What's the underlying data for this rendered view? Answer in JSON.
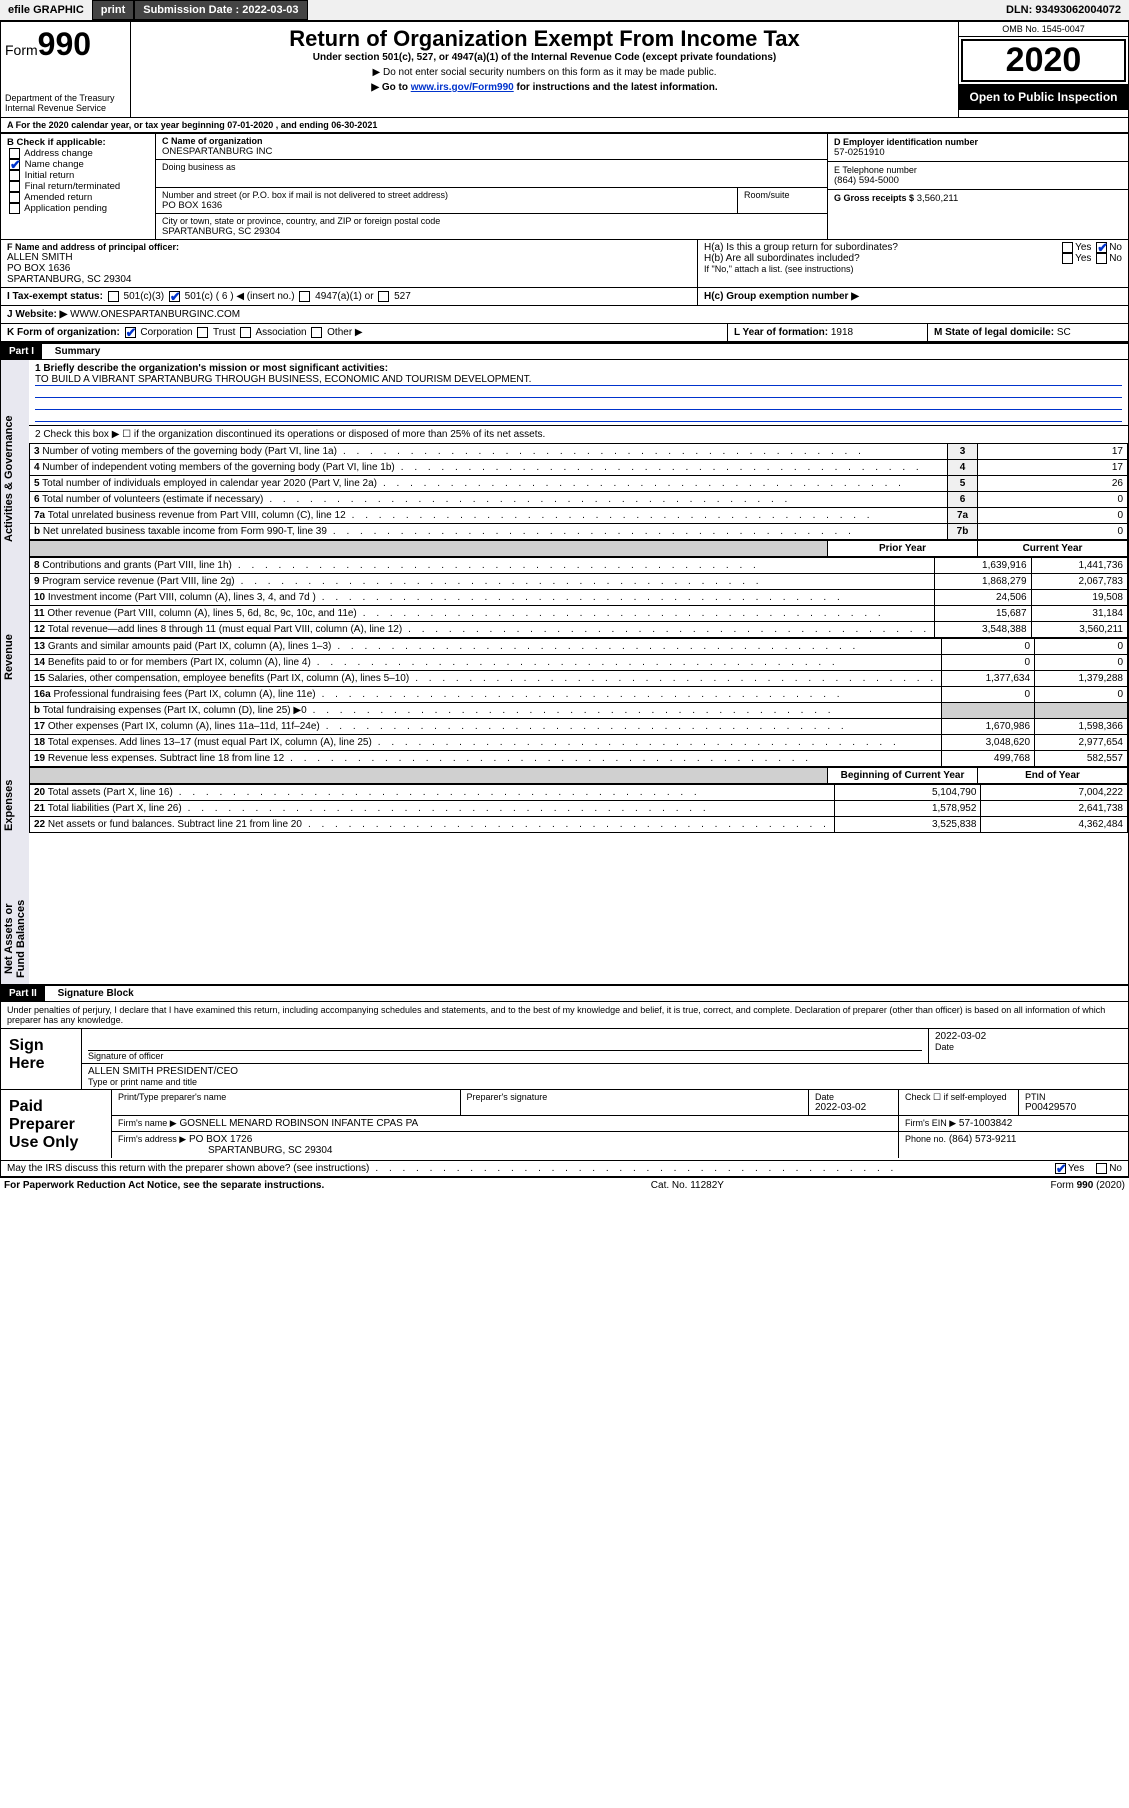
{
  "topbar": {
    "efile": "efile GRAPHIC",
    "print": "print",
    "submission_label": "Submission Date : 2022-03-03",
    "dln": "DLN: 93493062004072"
  },
  "header": {
    "form_label": "Form",
    "form_number": "990",
    "dept": "Department of the Treasury",
    "irs": "Internal Revenue Service",
    "title": "Return of Organization Exempt From Income Tax",
    "subtitle": "Under section 501(c), 527, or 4947(a)(1) of the Internal Revenue Code (except private foundations)",
    "line1": "▶ Do not enter social security numbers on this form as it may be made public.",
    "line2_pre": "▶ Go to ",
    "line2_link": "www.irs.gov/Form990",
    "line2_post": " for instructions and the latest information.",
    "omb": "OMB No. 1545-0047",
    "year": "2020",
    "open": "Open to Public Inspection"
  },
  "A": {
    "text": "For the 2020 calendar year, or tax year beginning 07-01-2020    , and ending 06-30-2021"
  },
  "B": {
    "label": "B Check if applicable:",
    "opts": [
      "Address change",
      "Name change",
      "Initial return",
      "Final return/terminated",
      "Amended return",
      "Application pending"
    ],
    "checked_index": 1
  },
  "C": {
    "name_label": "C Name of organization",
    "name": "ONESPARTANBURG INC",
    "dba_label": "Doing business as",
    "street_label": "Number and street (or P.O. box if mail is not delivered to street address)",
    "room_label": "Room/suite",
    "street": "PO BOX 1636",
    "city_label": "City or town, state or province, country, and ZIP or foreign postal code",
    "city": "SPARTANBURG, SC  29304"
  },
  "D": {
    "label": "D Employer identification number",
    "value": "57-0251910"
  },
  "E": {
    "label": "E Telephone number",
    "value": "(864) 594-5000"
  },
  "G": {
    "label": "G Gross receipts $",
    "value": "3,560,211"
  },
  "F": {
    "label": "F  Name and address of principal officer:",
    "name": "ALLEN SMITH",
    "addr1": "PO BOX 1636",
    "addr2": "SPARTANBURG, SC  29304"
  },
  "H": {
    "a": "H(a)  Is this a group return for subordinates?",
    "a_yes": "Yes",
    "a_no": "No",
    "b": "H(b)  Are all subordinates included?",
    "b_yes": "Yes",
    "b_no": "No",
    "b_note": "If \"No,\" attach a list. (see instructions)",
    "c": "H(c)  Group exemption number ▶"
  },
  "I": {
    "label": "I    Tax-exempt status:",
    "opts": [
      "501(c)(3)",
      "501(c) ( 6 ) ◀ (insert no.)",
      "4947(a)(1) or",
      "527"
    ],
    "checked_index": 1
  },
  "J": {
    "label": "J   Website: ▶",
    "value": "WWW.ONESPARTANBURGINC.COM"
  },
  "K": {
    "label": "K Form of organization:",
    "opts": [
      "Corporation",
      "Trust",
      "Association",
      "Other ▶"
    ],
    "checked_index": 0
  },
  "L": {
    "label": "L Year of formation:",
    "value": "1918"
  },
  "M": {
    "label": "M State of legal domicile:",
    "value": "SC"
  },
  "part1": {
    "header": "Part I",
    "title": "Summary",
    "q1": "1  Briefly describe the organization's mission or most significant activities:",
    "mission": "TO BUILD A VIBRANT SPARTANBURG THROUGH BUSINESS, ECONOMIC AND TOURISM DEVELOPMENT.",
    "q2": "2  Check this box ▶ ☐  if the organization discontinued its operations or disposed of more than 25% of its net assets."
  },
  "sections": {
    "gov": "Activities & Governance",
    "rev": "Revenue",
    "exp": "Expenses",
    "net": "Net Assets or Fund Balances"
  },
  "col_headers": {
    "prior": "Prior Year",
    "current": "Current Year",
    "begin": "Beginning of Current Year",
    "end": "End of Year"
  },
  "gov_rows": [
    {
      "n": "3",
      "desc": "Number of voting members of the governing body (Part VI, line 1a)",
      "box": "3",
      "val": "17"
    },
    {
      "n": "4",
      "desc": "Number of independent voting members of the governing body (Part VI, line 1b)",
      "box": "4",
      "val": "17"
    },
    {
      "n": "5",
      "desc": "Total number of individuals employed in calendar year 2020 (Part V, line 2a)",
      "box": "5",
      "val": "26"
    },
    {
      "n": "6",
      "desc": "Total number of volunteers (estimate if necessary)",
      "box": "6",
      "val": "0"
    },
    {
      "n": "7a",
      "desc": "Total unrelated business revenue from Part VIII, column (C), line 12",
      "box": "7a",
      "val": "0"
    },
    {
      "n": "b",
      "desc": "Net unrelated business taxable income from Form 990-T, line 39",
      "box": "7b",
      "val": "0"
    }
  ],
  "rev_rows": [
    {
      "n": "8",
      "desc": "Contributions and grants (Part VIII, line 1h)",
      "prior": "1,639,916",
      "curr": "1,441,736"
    },
    {
      "n": "9",
      "desc": "Program service revenue (Part VIII, line 2g)",
      "prior": "1,868,279",
      "curr": "2,067,783"
    },
    {
      "n": "10",
      "desc": "Investment income (Part VIII, column (A), lines 3, 4, and 7d )",
      "prior": "24,506",
      "curr": "19,508"
    },
    {
      "n": "11",
      "desc": "Other revenue (Part VIII, column (A), lines 5, 6d, 8c, 9c, 10c, and 11e)",
      "prior": "15,687",
      "curr": "31,184"
    },
    {
      "n": "12",
      "desc": "Total revenue—add lines 8 through 11 (must equal Part VIII, column (A), line 12)",
      "prior": "3,548,388",
      "curr": "3,560,211"
    }
  ],
  "exp_rows": [
    {
      "n": "13",
      "desc": "Grants and similar amounts paid (Part IX, column (A), lines 1–3)",
      "prior": "0",
      "curr": "0"
    },
    {
      "n": "14",
      "desc": "Benefits paid to or for members (Part IX, column (A), line 4)",
      "prior": "0",
      "curr": "0"
    },
    {
      "n": "15",
      "desc": "Salaries, other compensation, employee benefits (Part IX, column (A), lines 5–10)",
      "prior": "1,377,634",
      "curr": "1,379,288"
    },
    {
      "n": "16a",
      "desc": "Professional fundraising fees (Part IX, column (A), line 11e)",
      "prior": "0",
      "curr": "0"
    },
    {
      "n": "b",
      "desc": "Total fundraising expenses (Part IX, column (D), line 25) ▶0",
      "prior": "",
      "curr": "",
      "shade": true
    },
    {
      "n": "17",
      "desc": "Other expenses (Part IX, column (A), lines 11a–11d, 11f–24e)",
      "prior": "1,670,986",
      "curr": "1,598,366"
    },
    {
      "n": "18",
      "desc": "Total expenses. Add lines 13–17 (must equal Part IX, column (A), line 25)",
      "prior": "3,048,620",
      "curr": "2,977,654"
    },
    {
      "n": "19",
      "desc": "Revenue less expenses. Subtract line 18 from line 12",
      "prior": "499,768",
      "curr": "582,557"
    }
  ],
  "net_rows": [
    {
      "n": "20",
      "desc": "Total assets (Part X, line 16)",
      "prior": "5,104,790",
      "curr": "7,004,222"
    },
    {
      "n": "21",
      "desc": "Total liabilities (Part X, line 26)",
      "prior": "1,578,952",
      "curr": "2,641,738"
    },
    {
      "n": "22",
      "desc": "Net assets or fund balances. Subtract line 21 from line 20",
      "prior": "3,525,838",
      "curr": "4,362,484"
    }
  ],
  "part2": {
    "header": "Part II",
    "title": "Signature Block",
    "perjury": "Under penalties of perjury, I declare that I have examined this return, including accompanying schedules and statements, and to the best of my knowledge and belief, it is true, correct, and complete. Declaration of preparer (other than officer) is based on all information of which preparer has any knowledge."
  },
  "sign": {
    "label": "Sign Here",
    "sig_label": "Signature of officer",
    "date_label": "Date",
    "date": "2022-03-02",
    "name": "ALLEN SMITH  PRESIDENT/CEO",
    "name_label": "Type or print name and title"
  },
  "paid": {
    "label": "Paid Preparer Use Only",
    "c1": "Print/Type preparer's name",
    "c2": "Preparer's signature",
    "c3": "Date",
    "date": "2022-03-02",
    "c4_pre": "Check ☐ if self-employed",
    "c5": "PTIN",
    "ptin": "P00429570",
    "firm_name_label": "Firm's name    ▶",
    "firm_name": "GOSNELL MENARD ROBINSON INFANTE CPAS PA",
    "firm_ein_label": "Firm's EIN ▶",
    "firm_ein": "57-1003842",
    "firm_addr_label": "Firm's address ▶",
    "firm_addr1": "PO BOX 1726",
    "firm_addr2": "SPARTANBURG, SC  29304",
    "phone_label": "Phone no.",
    "phone": "(864) 573-9211"
  },
  "bottom": {
    "discuss": "May the IRS discuss this return with the preparer shown above? (see instructions)",
    "yes": "Yes",
    "no": "No",
    "paperwork": "For Paperwork Reduction Act Notice, see the separate instructions.",
    "cat": "Cat. No. 11282Y",
    "form": "Form 990 (2020)"
  },
  "colors": {
    "link": "#0033cc",
    "shade": "#e8e8f0",
    "darkbtn": "#444444"
  }
}
